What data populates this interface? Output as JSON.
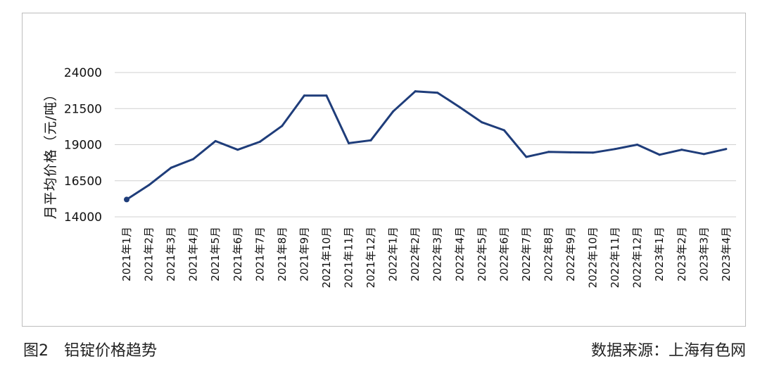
{
  "figure": {
    "caption": "图2　铝锭价格趋势",
    "source": "数据来源：上海有色网"
  },
  "chart_data": {
    "type": "line",
    "title": "",
    "xlabel": "",
    "ylabel": "月平均价格（元/吨）",
    "ylim": [
      14000,
      24000
    ],
    "yticks": [
      "24000",
      "21500",
      "19000",
      "16500",
      "14000"
    ],
    "grid": true,
    "legend": "none",
    "categories": [
      "2021年1月",
      "2021年2月",
      "2021年3月",
      "2021年4月",
      "2021年5月",
      "2021年6月",
      "2021年7月",
      "2021年8月",
      "2021年9月",
      "2021年10月",
      "2021年11月",
      "2021年12月",
      "2022年1月",
      "2022年2月",
      "2022年3月",
      "2022年4月",
      "2022年5月",
      "2022年6月",
      "2022年7月",
      "2022年8月",
      "2022年9月",
      "2022年10月",
      "2022年11月",
      "2022年12月",
      "2023年1月",
      "2023年2月",
      "2023年3月",
      "2023年4月"
    ],
    "series": [
      {
        "values": [
          15200,
          16200,
          17400,
          18000,
          19250,
          18650,
          19200,
          20300,
          22400,
          22400,
          19100,
          19300,
          21300,
          22700,
          22600,
          21600,
          20550,
          20000,
          18150,
          18500,
          18470,
          18450,
          18700,
          19000,
          18300,
          18650,
          18350,
          18700
        ],
        "color": "#1f3d7a"
      }
    ]
  }
}
